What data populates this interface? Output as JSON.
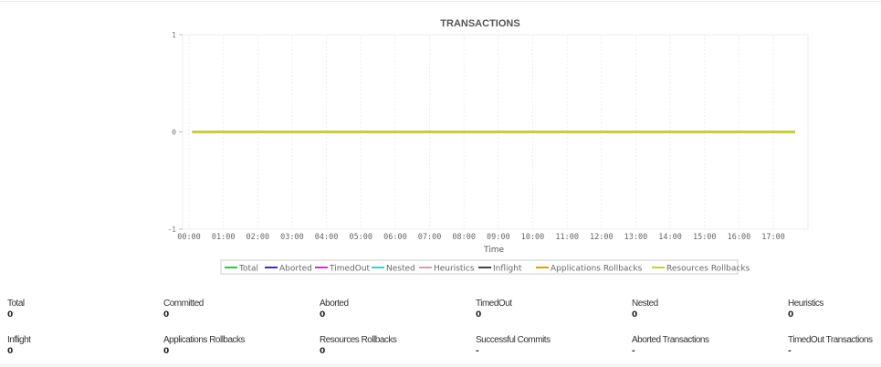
{
  "chart_data": {
    "type": "line",
    "title": "TRANSACTIONS",
    "xlabel": "Time",
    "ylabel": "",
    "ylim": [
      -1,
      1
    ],
    "yticks": [
      "1",
      "0",
      "-1"
    ],
    "xticks": [
      "00:00",
      "01:00",
      "02:00",
      "03:00",
      "04:00",
      "05:00",
      "06:00",
      "07:00",
      "08:00",
      "09:00",
      "10:00",
      "11:00",
      "12:00",
      "13:00",
      "14:00",
      "15:00",
      "16:00",
      "17:00"
    ],
    "grid": true,
    "legend_position": "bottom",
    "x": [
      "00:06",
      "17:38"
    ],
    "series": [
      {
        "name": "Total",
        "color": "#3ec43e",
        "values": [
          0,
          0
        ]
      },
      {
        "name": "Aborted",
        "color": "#3333bb",
        "values": [
          0,
          0
        ]
      },
      {
        "name": "TimedOut",
        "color": "#cc33cc",
        "values": [
          0,
          0
        ]
      },
      {
        "name": "Nested",
        "color": "#44cccc",
        "values": [
          0,
          0
        ]
      },
      {
        "name": "Heuristics",
        "color": "#d8a0a8",
        "values": [
          0,
          0
        ]
      },
      {
        "name": "Inflight",
        "color": "#444444",
        "values": [
          0,
          0
        ]
      },
      {
        "name": "Applications Rollbacks",
        "color": "#d4a020",
        "values": [
          0,
          0
        ]
      },
      {
        "name": "Resources Rollbacks",
        "color": "#c8cc40",
        "values": [
          0,
          0
        ]
      }
    ],
    "visible_line_color": "#2e7d4f"
  },
  "stats": [
    {
      "label": "Total",
      "value": "0"
    },
    {
      "label": "Committed",
      "value": "0"
    },
    {
      "label": "Aborted",
      "value": "0"
    },
    {
      "label": "TimedOut",
      "value": "0"
    },
    {
      "label": "Nested",
      "value": "0"
    },
    {
      "label": "Heuristics",
      "value": "0"
    },
    {
      "label": "Inflight",
      "value": "0"
    },
    {
      "label": "Applications Rollbacks",
      "value": "0"
    },
    {
      "label": "Resources Rollbacks",
      "value": "0"
    },
    {
      "label": "Successful Commits",
      "value": "-"
    },
    {
      "label": "Aborted Transactions",
      "value": "-"
    },
    {
      "label": "TimedOut Transactions",
      "value": "-"
    }
  ]
}
